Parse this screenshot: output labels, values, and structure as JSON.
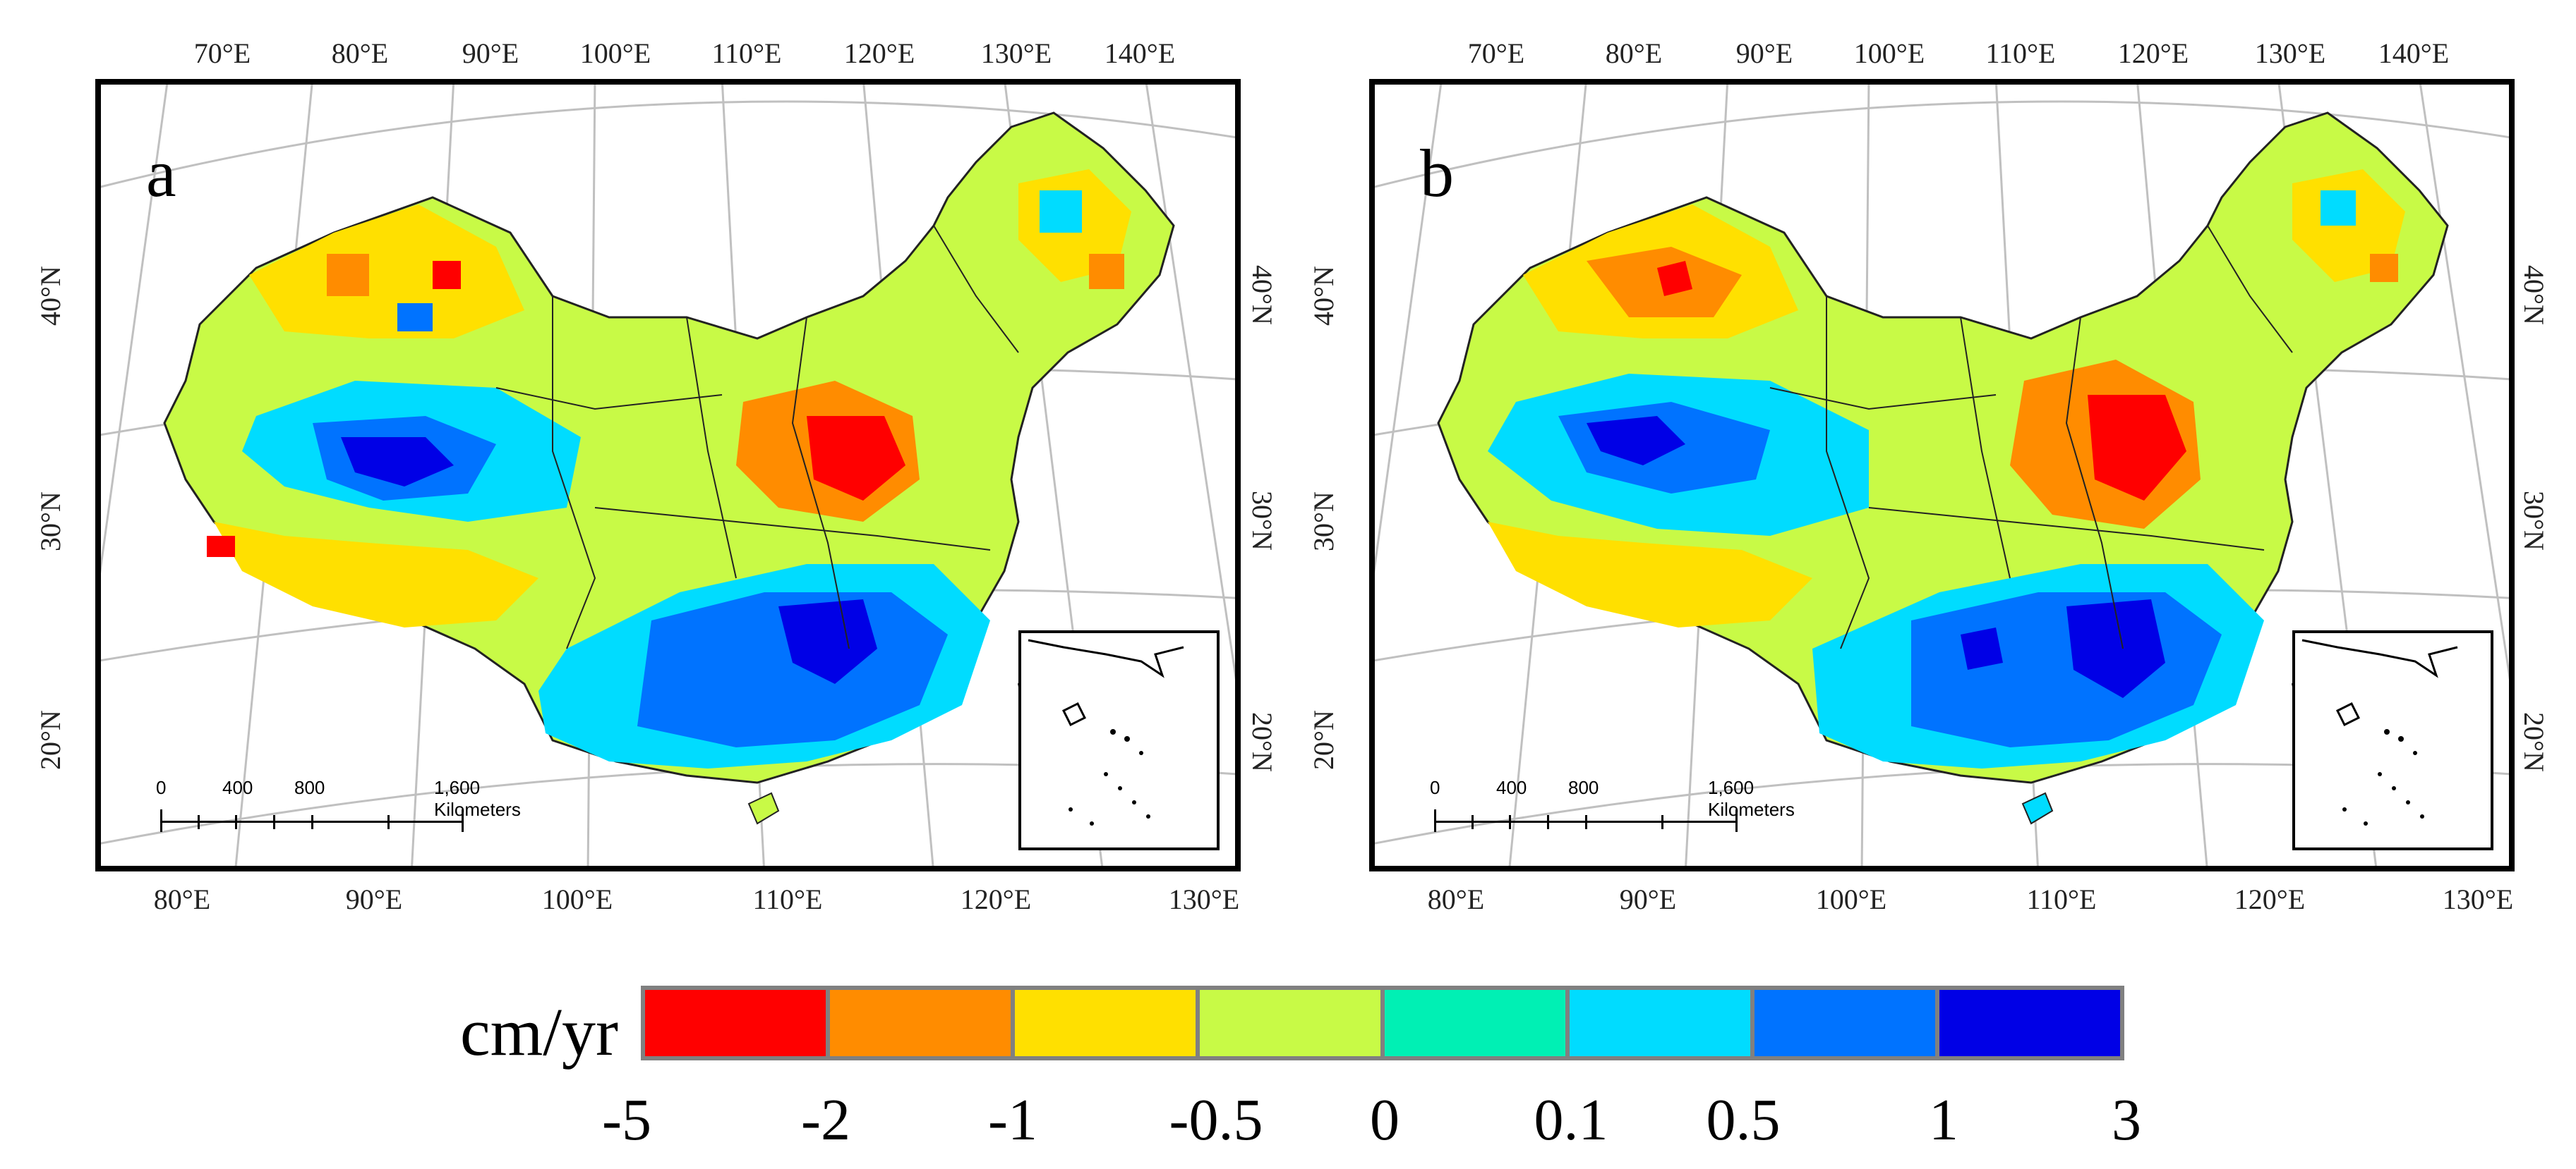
{
  "legend": {
    "unit": "cm/yr",
    "colors": [
      "#ff0000",
      "#ff8c00",
      "#ffe000",
      "#c8fa46",
      "#00f0b4",
      "#00dcff",
      "#0073ff",
      "#0000e6"
    ],
    "ticks": [
      "-5",
      "-2",
      "-1",
      "-0.5",
      "0",
      "0.1",
      "0.5",
      "1",
      "3"
    ]
  },
  "panels": {
    "a": {
      "label": "a",
      "top_lon": [
        "70°E",
        "80°E",
        "90°E",
        "100°E",
        "110°E",
        "120°E",
        "130°E",
        "140°E"
      ],
      "bottom_lon": [
        "80°E",
        "90°E",
        "100°E",
        "110°E",
        "120°E",
        "130°E"
      ],
      "left_lat": [
        "40°N",
        "30°N",
        "20°N"
      ],
      "right_lat": [
        "40°N",
        "30°N",
        "20°N"
      ],
      "scale_numbers": [
        "0",
        "400",
        "800"
      ],
      "scale_units": "1,600 Kilometers"
    },
    "b": {
      "label": "b",
      "top_lon": [
        "70°E",
        "80°E",
        "90°E",
        "100°E",
        "110°E",
        "120°E",
        "130°E",
        "140°E"
      ],
      "bottom_lon": [
        "80°E",
        "90°E",
        "100°E",
        "110°E",
        "120°E",
        "130°E"
      ],
      "left_lat": [
        "40°N",
        "30°N",
        "20°N"
      ],
      "right_lat": [
        "40°N",
        "30°N",
        "20°N"
      ],
      "scale_numbers": [
        "0",
        "400",
        "800"
      ],
      "scale_units": "1,600 Kilometers"
    }
  }
}
